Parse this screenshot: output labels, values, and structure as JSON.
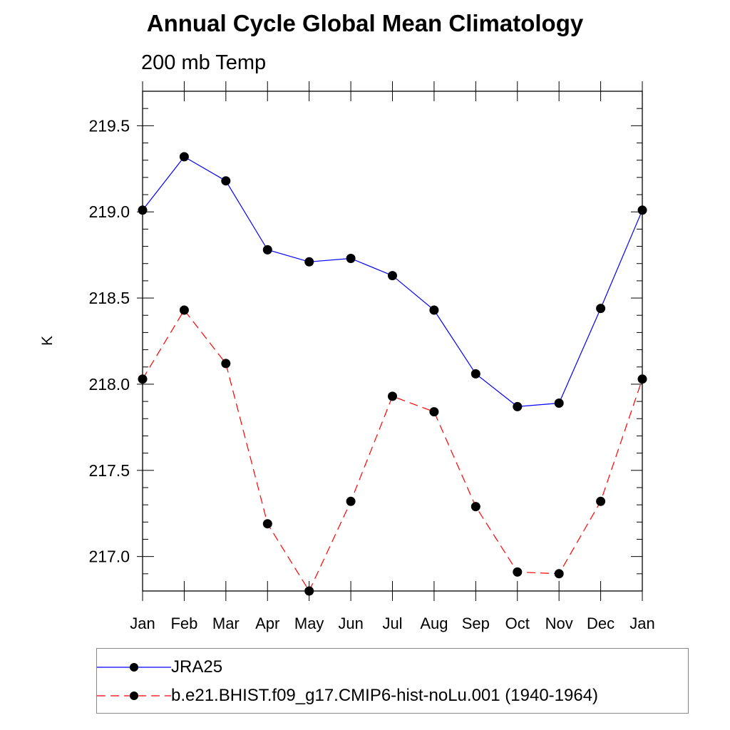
{
  "chart_data": {
    "type": "line",
    "title": "Annual Cycle Global Mean Climatology",
    "subtitle": "200 mb Temp",
    "xlabel": "",
    "ylabel": "K",
    "categories": [
      "Jan",
      "Feb",
      "Mar",
      "Apr",
      "May",
      "Jun",
      "Jul",
      "Aug",
      "Sep",
      "Oct",
      "Nov",
      "Dec",
      "Jan"
    ],
    "ylim": [
      216.8,
      219.7
    ],
    "yticks": [
      217.0,
      217.5,
      218.0,
      218.5,
      219.0,
      219.5
    ],
    "ytick_labels": [
      "217.0",
      "217.5",
      "218.0",
      "218.5",
      "219.0",
      "219.5"
    ],
    "grid": false,
    "legend_position": "bottom",
    "series": [
      {
        "name": "JRA25",
        "color": "#0000ff",
        "line_style": "solid",
        "marker": "circle",
        "values": [
          219.01,
          219.32,
          219.18,
          218.78,
          218.71,
          218.73,
          218.63,
          218.43,
          218.06,
          217.87,
          217.89,
          218.44,
          219.01
        ]
      },
      {
        "name": "b.e21.BHIST.f09_g17.CMIP6-hist-noLu.001 (1940-1964)",
        "color": "#ff0000",
        "line_style": "dashed",
        "marker": "circle",
        "values": [
          218.03,
          218.43,
          218.12,
          217.19,
          216.8,
          217.32,
          217.93,
          217.84,
          217.29,
          216.91,
          216.9,
          217.32,
          218.03
        ]
      }
    ]
  }
}
